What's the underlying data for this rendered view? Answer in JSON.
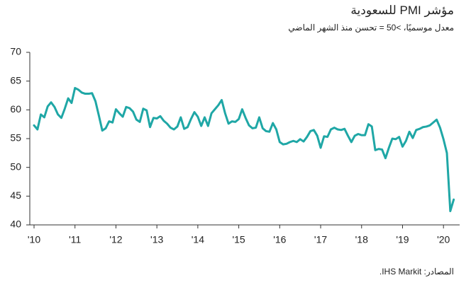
{
  "chart_data": {
    "type": "line",
    "title": "مؤشر PMI للسعودية",
    "subtitle": "معدل موسميًا، >50 = تحسن منذ الشهر الماضي",
    "source": "المصادر: IHS Markit.",
    "color": "#1fa7a6",
    "categories": [
      "'10",
      null,
      null,
      null,
      null,
      null,
      null,
      null,
      null,
      null,
      null,
      null,
      "'11",
      null,
      null,
      null,
      null,
      null,
      null,
      null,
      null,
      null,
      null,
      null,
      "'12",
      null,
      null,
      null,
      null,
      null,
      null,
      null,
      null,
      null,
      null,
      null,
      "'13",
      null,
      null,
      null,
      null,
      null,
      null,
      null,
      null,
      null,
      null,
      null,
      "'14",
      null,
      null,
      null,
      null,
      null,
      null,
      null,
      null,
      null,
      null,
      null,
      "'15",
      null,
      null,
      null,
      null,
      null,
      null,
      null,
      null,
      null,
      null,
      null,
      "'16",
      null,
      null,
      null,
      null,
      null,
      null,
      null,
      null,
      null,
      null,
      null,
      "'17",
      null,
      null,
      null,
      null,
      null,
      null,
      null,
      null,
      null,
      null,
      null,
      "'18",
      null,
      null,
      null,
      null,
      null,
      null,
      null,
      null,
      null,
      null,
      null,
      "'19",
      null,
      null,
      null,
      null,
      null,
      null,
      null,
      null,
      null,
      null,
      null,
      "'20",
      null,
      null,
      null
    ],
    "values": [
      57.3,
      56.6,
      59.2,
      58.7,
      60.6,
      61.3,
      60.5,
      59.2,
      58.6,
      60.2,
      62.0,
      61.2,
      63.8,
      63.5,
      63.0,
      62.8,
      62.8,
      62.9,
      61.5,
      59.0,
      56.4,
      56.8,
      58.0,
      57.8,
      60.1,
      59.4,
      58.8,
      60.5,
      60.3,
      59.7,
      58.3,
      57.9,
      60.2,
      59.9,
      57.0,
      58.6,
      58.5,
      58.9,
      58.1,
      57.6,
      56.9,
      56.6,
      57.1,
      58.7,
      56.7,
      57.0,
      58.4,
      59.6,
      58.8,
      57.2,
      58.7,
      57.2,
      59.4,
      60.1,
      60.8,
      61.7,
      59.4,
      57.6,
      58.0,
      57.9,
      58.4,
      60.1,
      58.6,
      57.3,
      56.8,
      56.9,
      58.7,
      56.8,
      56.3,
      56.2,
      57.7,
      56.6,
      54.4,
      54.0,
      54.1,
      54.4,
      54.6,
      54.4,
      54.9,
      54.5,
      55.3,
      56.3,
      56.5,
      55.5,
      53.4,
      55.4,
      55.3,
      56.6,
      56.9,
      56.6,
      56.5,
      56.7,
      55.5,
      54.4,
      55.5,
      55.8,
      55.6,
      55.6,
      57.5,
      57.1,
      53.0,
      53.2,
      53.1,
      51.6,
      53.4,
      55.0,
      54.9,
      55.3,
      53.6,
      54.6,
      56.2,
      55.1,
      56.5,
      56.7,
      57.0,
      57.1,
      57.3,
      57.8,
      58.3,
      56.9,
      54.9,
      52.5,
      42.4,
      44.4
    ],
    "ylim": [
      40,
      70
    ],
    "yticks": [
      40,
      45,
      50,
      55,
      60,
      65,
      70
    ],
    "grid": false
  }
}
